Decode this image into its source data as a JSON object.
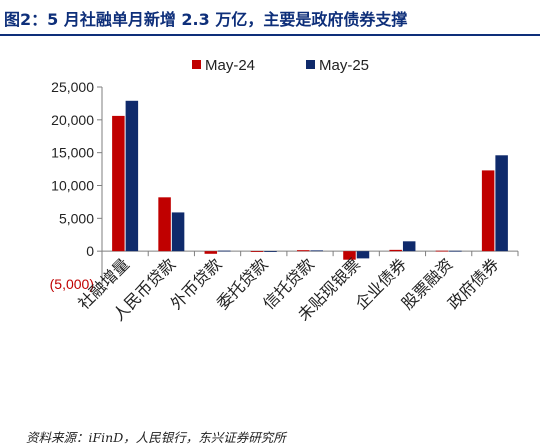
{
  "header": {
    "title": "图2：5 月社融单月新增 2.3 万亿，主要是政府债券支撑"
  },
  "footer": {
    "source": "资料来源：iFinD，人民银行，东兴证券研究所"
  },
  "colors": {
    "title": "#0e2f7a",
    "series_may24": "#c00000",
    "series_may25": "#0f2a6b",
    "negative_tick": "#c00000"
  },
  "chart_data": {
    "type": "bar",
    "categories": [
      "社融增量",
      "人民币贷款",
      "外币贷款",
      "委托贷款",
      "信托贷款",
      "未贴现银票",
      "企业债券",
      "股票融资",
      "政府债券"
    ],
    "series": [
      {
        "name": "May-24",
        "values": [
          20600,
          8200,
          -400,
          -50,
          150,
          -1300,
          200,
          70,
          12300
        ]
      },
      {
        "name": "May-25",
        "values": [
          22900,
          5900,
          80,
          -80,
          120,
          -1100,
          1500,
          60,
          14600
        ]
      }
    ],
    "ylim": [
      -5000,
      25000
    ],
    "yticks": [
      25000,
      20000,
      15000,
      10000,
      5000,
      0,
      -5000
    ],
    "ytick_labels": [
      "25,000",
      "20,000",
      "15,000",
      "10,000",
      "5,000",
      "0",
      "(5,000)"
    ],
    "legend_position": "top",
    "grid": false,
    "title": "",
    "xlabel": "",
    "ylabel": ""
  }
}
